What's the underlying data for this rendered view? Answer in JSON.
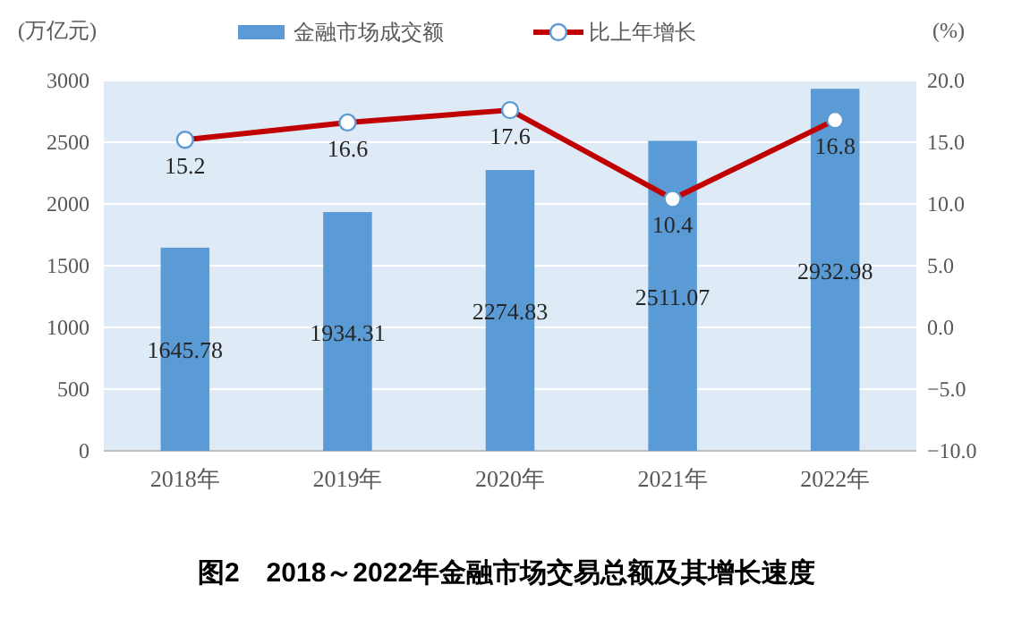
{
  "chart_data": {
    "type": "bar",
    "title": "图2　2018～2022年金融市场交易总额及其增长速度",
    "ylabel": "(万亿元)",
    "y2label": "(%)",
    "categories": [
      "2018年",
      "2019年",
      "2020年",
      "2021年",
      "2022年"
    ],
    "series": [
      {
        "name": "金融市场成交额",
        "color": "#5b9bd5",
        "values": [
          1645.78,
          1934.31,
          2274.83,
          2511.07,
          2932.98
        ]
      },
      {
        "name": "比上年增长",
        "type": "line",
        "axis": "y2",
        "color": "#c00000",
        "marker": "circle",
        "values": [
          15.2,
          16.6,
          17.6,
          10.4,
          16.8
        ]
      }
    ],
    "ylim": [
      0,
      3000
    ],
    "yticks": [
      0,
      500,
      1000,
      1500,
      2000,
      2500,
      3000
    ],
    "y2lim": [
      -10,
      20
    ],
    "y2ticks": [
      {
        "value": -10,
        "label": "−10.0"
      },
      {
        "value": -5,
        "label": "−5.0"
      },
      {
        "value": 0,
        "label": "0.0"
      },
      {
        "value": 5,
        "label": "5.0"
      },
      {
        "value": 10,
        "label": "10.0"
      },
      {
        "value": 15,
        "label": "15.0"
      },
      {
        "value": 20,
        "label": "20.0"
      }
    ],
    "grid": "y",
    "legend": "top",
    "data_labels": true
  }
}
